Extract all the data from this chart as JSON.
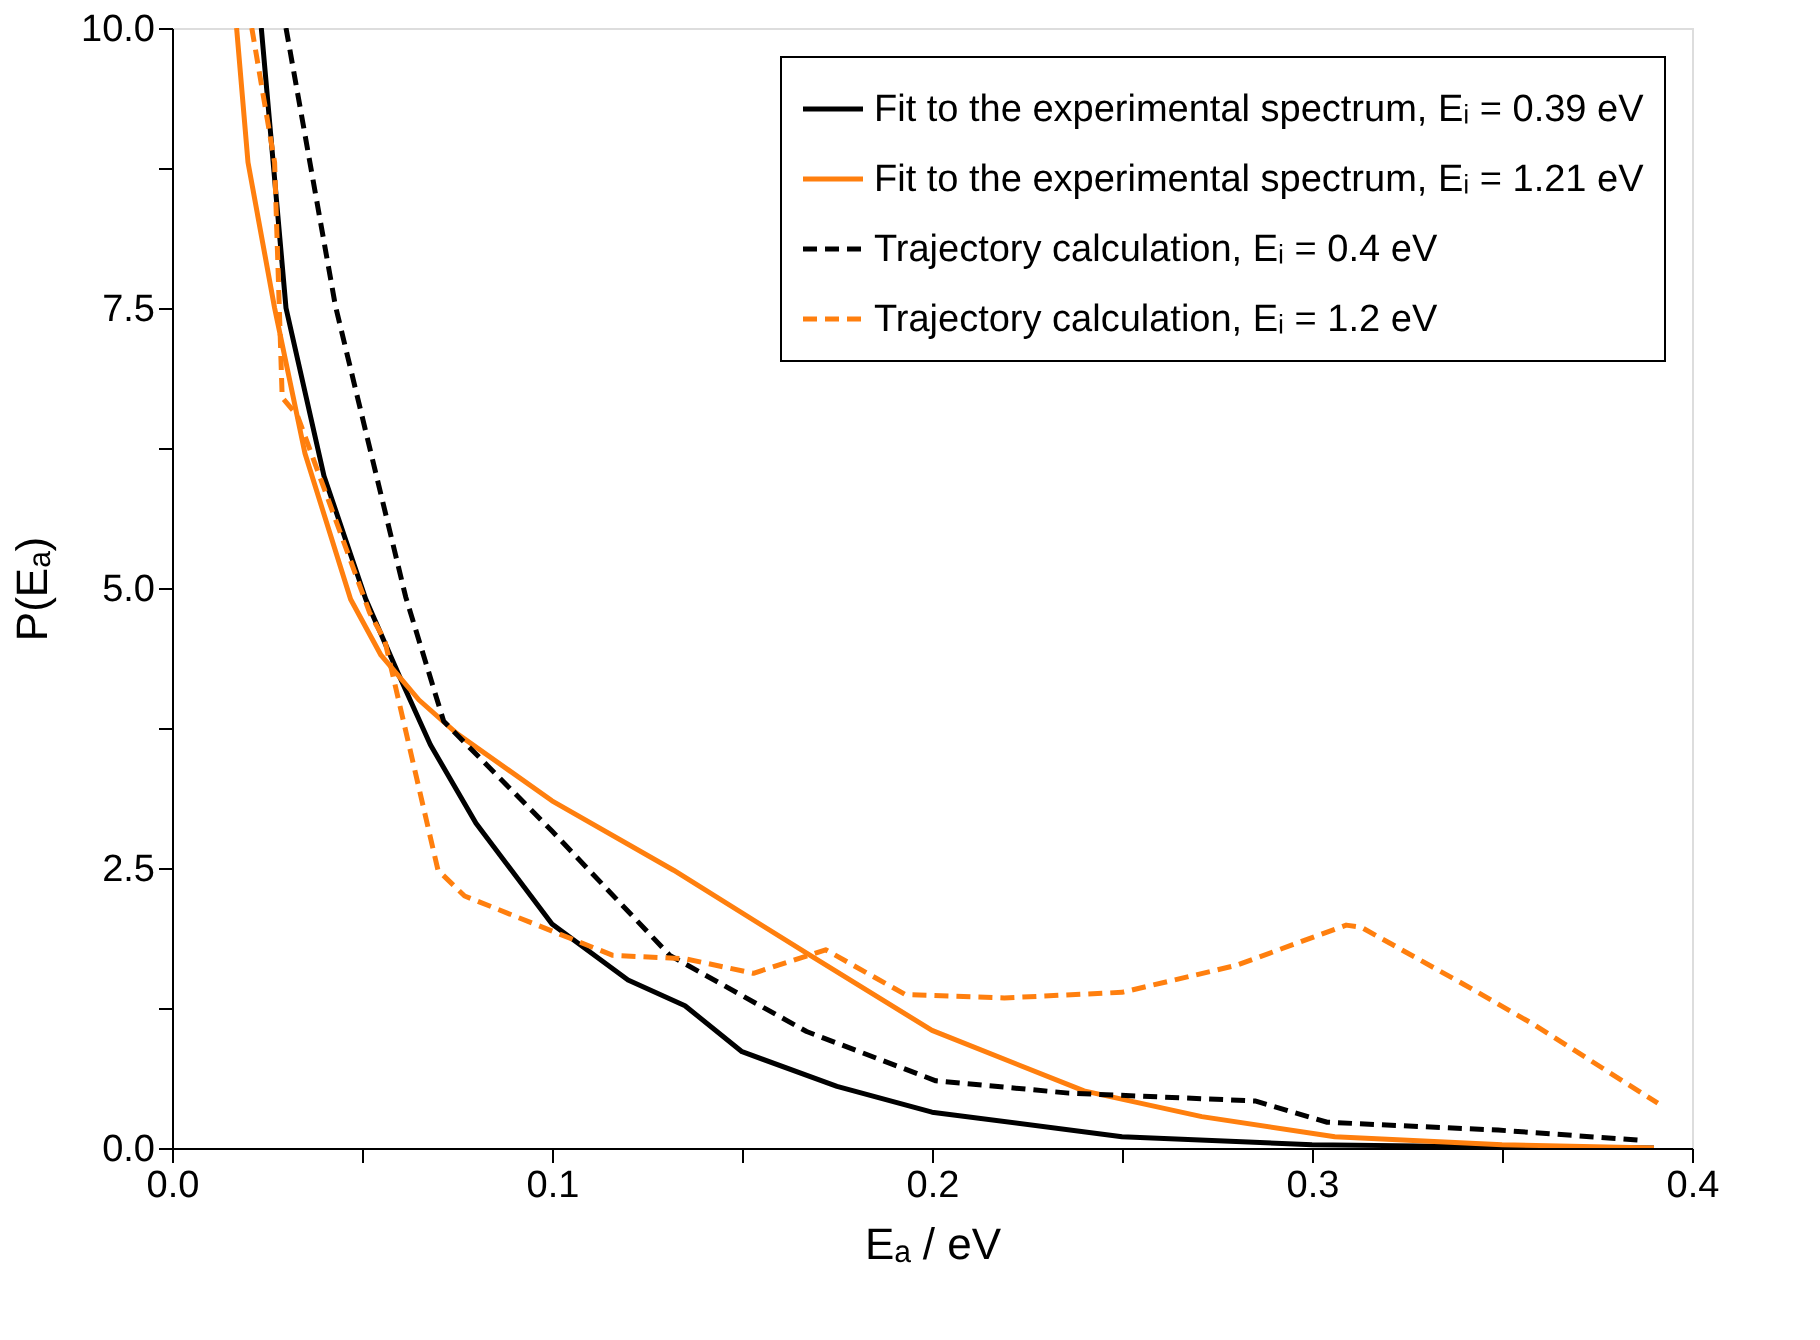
{
  "chart_data": {
    "type": "line",
    "xlabel": "Eₐ / eV",
    "ylabel": "P(Eₐ)",
    "xlim": [
      0,
      0.4
    ],
    "ylim": [
      0,
      10
    ],
    "xticks": [
      {
        "value": 0,
        "label": "0.0"
      },
      {
        "value": 0.05,
        "label": null
      },
      {
        "value": 0.1,
        "label": "0.1"
      },
      {
        "value": 0.15,
        "label": null
      },
      {
        "value": 0.2,
        "label": "0.2"
      },
      {
        "value": 0.25,
        "label": null
      },
      {
        "value": 0.3,
        "label": "0.3"
      },
      {
        "value": 0.35,
        "label": null
      },
      {
        "value": 0.4,
        "label": "0.4"
      }
    ],
    "yticks": [
      {
        "value": 0,
        "label": "0.0"
      },
      {
        "value": 1.25,
        "label": null
      },
      {
        "value": 2.5,
        "label": "2.5"
      },
      {
        "value": 3.75,
        "label": null
      },
      {
        "value": 5,
        "label": "5.0"
      },
      {
        "value": 6.25,
        "label": null
      },
      {
        "value": 7.5,
        "label": "7.5"
      },
      {
        "value": 8.75,
        "label": null
      },
      {
        "value": 10,
        "label": "10.0"
      }
    ],
    "grid": false,
    "legend": "top right",
    "marker": "none",
    "series": [
      {
        "name": "Fit to the experimental spectrum, Eᵢ = 0.39 eV",
        "color": "#000000",
        "line_style": "solid",
        "x": [
          0.0235,
          0.03,
          0.04,
          0.051,
          0.06,
          0.068,
          0.08,
          0.1,
          0.12,
          0.135,
          0.15,
          0.175,
          0.2,
          0.25,
          0.3,
          0.35,
          0.39
        ],
        "values": [
          10,
          7.5,
          6.0,
          4.9,
          4.2,
          3.6,
          2.9,
          2.0,
          1.5,
          1.27,
          0.86,
          0.55,
          0.32,
          0.1,
          0.03,
          0.01,
          0.0
        ]
      },
      {
        "name": "Fit to the experimental spectrum, Eᵢ = 1.21 eV",
        "color": "#ff7f0e",
        "line_style": "solid",
        "x": [
          0.017,
          0.02,
          0.027,
          0.035,
          0.047,
          0.055,
          0.065,
          0.075,
          0.1,
          0.132,
          0.167,
          0.2,
          0.24,
          0.271,
          0.306,
          0.35,
          0.39
        ],
        "values": [
          10,
          8.8,
          7.5,
          6.2,
          4.9,
          4.4,
          4.0,
          3.7,
          3.1,
          2.48,
          1.74,
          1.05,
          0.51,
          0.28,
          0.1,
          0.03,
          0.0
        ]
      },
      {
        "name": "Trajectory calculation, Eᵢ = 0.4 eV",
        "color": "#000000",
        "line_style": "dashed",
        "x": [
          0.03,
          0.043,
          0.0615,
          0.0715,
          0.1,
          0.131,
          0.167,
          0.201,
          0.236,
          0.285,
          0.304,
          0.349,
          0.386
        ],
        "values": [
          10,
          7.52,
          4.92,
          3.81,
          2.83,
          1.72,
          1.04,
          0.6,
          0.49,
          0.42,
          0.23,
          0.16,
          0.07
        ]
      },
      {
        "name": "Trajectory calculation, Eᵢ = 1.2 eV",
        "color": "#ff7f0e",
        "line_style": "dashed",
        "x": [
          0.021,
          0.027,
          0.029,
          0.033,
          0.052,
          0.056,
          0.07,
          0.077,
          0.116,
          0.135,
          0.153,
          0.172,
          0.193,
          0.219,
          0.25,
          0.28,
          0.309,
          0.313,
          0.34,
          0.358,
          0.391
        ],
        "values": [
          10,
          8.8,
          6.7,
          6.54,
          4.78,
          4.53,
          2.48,
          2.25,
          1.72,
          1.69,
          1.56,
          1.77,
          1.37,
          1.34,
          1.39,
          1.63,
          1.99,
          1.97,
          1.46,
          1.11,
          0.4
        ]
      }
    ]
  }
}
